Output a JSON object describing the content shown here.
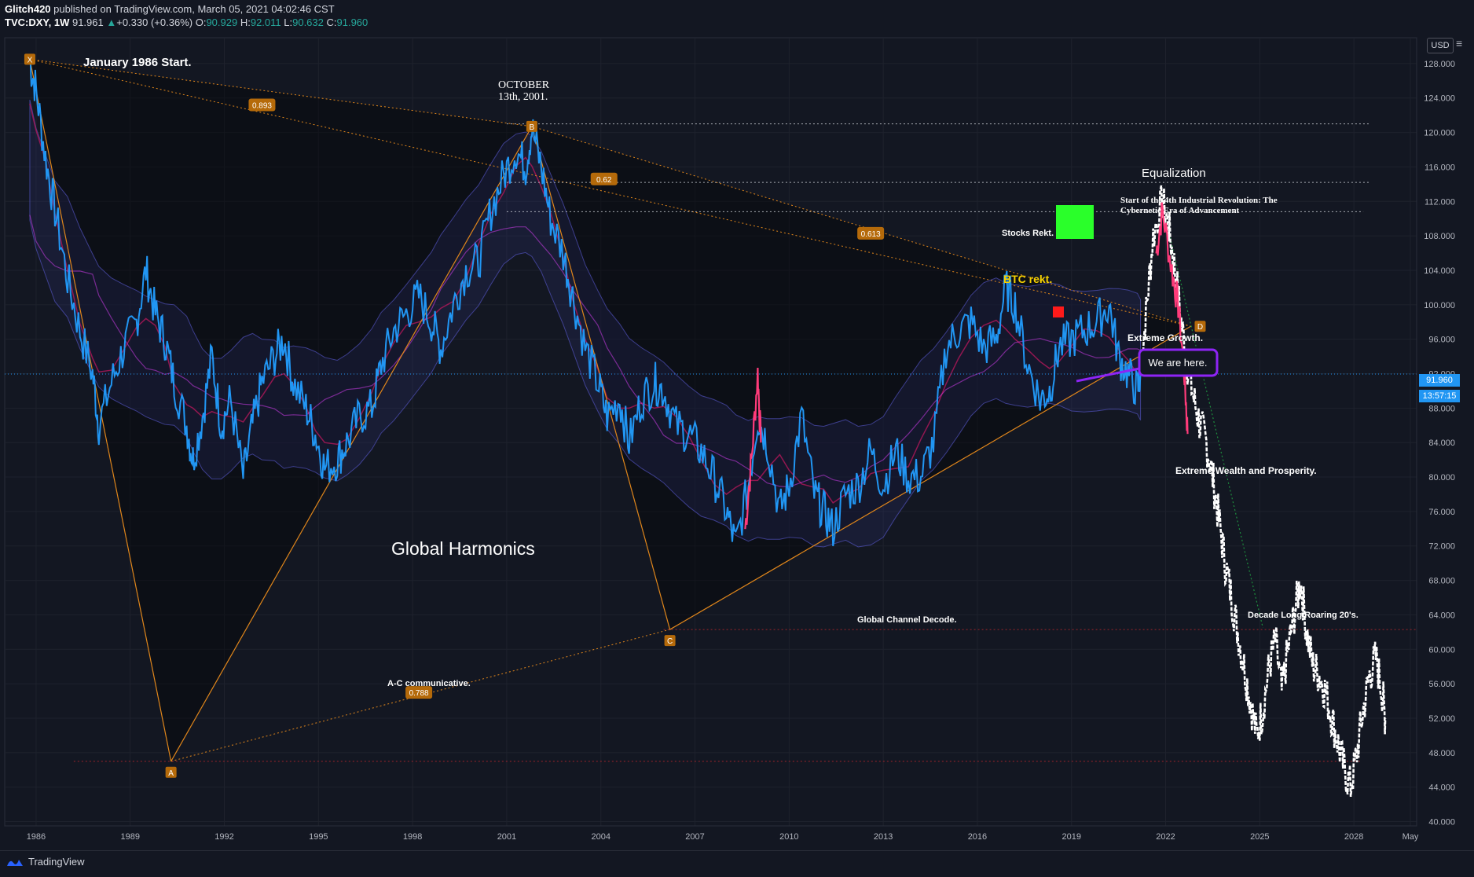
{
  "header": {
    "publisher": "Glitch420",
    "published_text": "published on TradingView.com, March 05, 2021 04:02:46 CST",
    "symbol": "TVC:DXY, 1W",
    "last": "91.961",
    "change_arrow": "▲",
    "change": "+0.330 (+0.36%)",
    "o_label": "O:",
    "o_val": "90.929",
    "h_label": "H:",
    "h_val": "92.011",
    "l_label": "L:",
    "l_val": "90.632",
    "c_label": "C:",
    "c_val": "91.960"
  },
  "footer": {
    "brand": "TradingView"
  },
  "price_axis": {
    "currency": "USD",
    "current_price": "91.960",
    "countdown": "13:57:15"
  },
  "colors": {
    "background": "#131722",
    "price_line": "#2196f3",
    "projection": "#ffffff",
    "pattern": "#e0861b",
    "pink_ma": "#e040fb",
    "red_ma": "#b2185a",
    "band": "#5c5cd6",
    "green_box": "#2aff2a",
    "red_box": "#ff1a1a",
    "callout_border": "#8e24f5"
  },
  "annotations": {
    "start": "January 1986 Start.",
    "october": "OCTOBER",
    "october2": "13th, 2001.",
    "equalization": "Equalization",
    "industrial1": "Start of the 4th Industrial Revolution: The",
    "industrial2": "Cybernetic Era of Advancement",
    "stocks": "Stocks Rekt.",
    "btc": "BTC rekt.",
    "extreme_growth": "Extreme Growth.",
    "we_are_here": "We are here.",
    "extreme_wealth": "Extreme Wealth and Prosperity.",
    "global_harmonics": "Global Harmonics",
    "channel_decode": "Global Channel Decode.",
    "roaring": "Decade Long Roaring 20's.",
    "ac_comm": "A-C communicative."
  },
  "pattern_points": [
    {
      "label": "X",
      "x": 1985.8,
      "y": 128.5
    },
    {
      "label": "A",
      "x": 1990.3,
      "y": 47.0
    },
    {
      "label": "B",
      "x": 2001.8,
      "y": 120.7
    },
    {
      "label": "C",
      "x": 2006.2,
      "y": 62.3
    },
    {
      "label": "D",
      "x": 2022.8,
      "y": 97.5
    }
  ],
  "ratios": [
    {
      "label": "0.893",
      "x": 1993.2,
      "y": 123.2
    },
    {
      "label": "0.62",
      "x": 2004.1,
      "y": 114.6
    },
    {
      "label": "0.613",
      "x": 2012.6,
      "y": 108.3
    },
    {
      "label": "0.788",
      "x": 1998.2,
      "y": 55.0
    }
  ],
  "chart_data": {
    "type": "line",
    "title": "",
    "xlabel": "",
    "ylabel": "",
    "x_ticks": [
      "1986",
      "1989",
      "1992",
      "1995",
      "1998",
      "2001",
      "2004",
      "2007",
      "2010",
      "2013",
      "2016",
      "2019",
      "2022",
      "2025",
      "2028",
      "May"
    ],
    "y_ticks": [
      "128.000",
      "124.000",
      "120.000",
      "116.000",
      "112.000",
      "108.000",
      "104.000",
      "100.000",
      "96.000",
      "92.000",
      "88.000",
      "84.000",
      "80.000",
      "76.000",
      "72.000",
      "68.000",
      "64.000",
      "60.000",
      "56.000",
      "52.000",
      "48.000",
      "44.000",
      "40.000"
    ],
    "ylim": [
      39.5,
      131
    ],
    "xlim": [
      1985.0,
      2030.0
    ],
    "series": [
      {
        "name": "",
        "points": [
          [
            1985.8,
            128.0
          ],
          [
            1986.0,
            125.0
          ],
          [
            1986.3,
            117.0
          ],
          [
            1986.6,
            111.0
          ],
          [
            1987.0,
            103.0
          ],
          [
            1987.4,
            97.0
          ],
          [
            1987.8,
            92.0
          ],
          [
            1988.0,
            86.0
          ],
          [
            1988.4,
            91.0
          ],
          [
            1988.8,
            95.0
          ],
          [
            1989.2,
            98.0
          ],
          [
            1989.5,
            104.0
          ],
          [
            1989.8,
            99.0
          ],
          [
            1990.1,
            96.0
          ],
          [
            1990.4,
            91.0
          ],
          [
            1990.8,
            86.0
          ],
          [
            1991.0,
            82.0
          ],
          [
            1991.3,
            87.0
          ],
          [
            1991.6,
            94.0
          ],
          [
            1991.9,
            86.0
          ],
          [
            1992.2,
            89.0
          ],
          [
            1992.6,
            80.0
          ],
          [
            1992.9,
            86.0
          ],
          [
            1993.2,
            91.0
          ],
          [
            1993.6,
            94.0
          ],
          [
            1993.9,
            96.0
          ],
          [
            1994.2,
            91.0
          ],
          [
            1994.6,
            88.0
          ],
          [
            1994.9,
            85.0
          ],
          [
            1995.2,
            81.0
          ],
          [
            1995.6,
            82.0
          ],
          [
            1995.9,
            84.0
          ],
          [
            1996.3,
            87.0
          ],
          [
            1996.7,
            88.0
          ],
          [
            1997.0,
            93.0
          ],
          [
            1997.4,
            97.0
          ],
          [
            1997.8,
            99.0
          ],
          [
            1998.2,
            101.0
          ],
          [
            1998.6,
            98.0
          ],
          [
            1998.9,
            95.0
          ],
          [
            1999.3,
            100.0
          ],
          [
            1999.7,
            104.0
          ],
          [
            2000.1,
            105.0
          ],
          [
            2000.5,
            111.0
          ],
          [
            2000.9,
            115.0
          ],
          [
            2001.3,
            118.0
          ],
          [
            2001.6,
            116.0
          ],
          [
            2001.8,
            120.5
          ],
          [
            2002.1,
            116.0
          ],
          [
            2002.4,
            110.0
          ],
          [
            2002.8,
            106.0
          ],
          [
            2003.1,
            101.0
          ],
          [
            2003.5,
            95.0
          ],
          [
            2003.9,
            91.0
          ],
          [
            2004.2,
            87.0
          ],
          [
            2004.6,
            89.0
          ],
          [
            2004.9,
            84.0
          ],
          [
            2005.3,
            89.0
          ],
          [
            2005.7,
            91.0
          ],
          [
            2006.0,
            90.0
          ],
          [
            2006.4,
            86.0
          ],
          [
            2006.8,
            85.0
          ],
          [
            2007.2,
            83.0
          ],
          [
            2007.6,
            80.0
          ],
          [
            2008.0,
            76.0
          ],
          [
            2008.3,
            72.0
          ],
          [
            2008.7,
            79.0
          ],
          [
            2009.0,
            87.0
          ],
          [
            2009.3,
            84.0
          ],
          [
            2009.7,
            76.0
          ],
          [
            2010.0,
            79.0
          ],
          [
            2010.4,
            87.0
          ],
          [
            2010.8,
            78.0
          ],
          [
            2011.1,
            76.0
          ],
          [
            2011.4,
            74.0
          ],
          [
            2011.8,
            78.0
          ],
          [
            2012.2,
            79.0
          ],
          [
            2012.6,
            83.0
          ],
          [
            2013.0,
            79.0
          ],
          [
            2013.4,
            83.0
          ],
          [
            2013.8,
            80.0
          ],
          [
            2014.2,
            80.0
          ],
          [
            2014.6,
            84.0
          ],
          [
            2015.0,
            95.0
          ],
          [
            2015.4,
            97.0
          ],
          [
            2015.8,
            98.0
          ],
          [
            2016.2,
            95.0
          ],
          [
            2016.6,
            96.0
          ],
          [
            2016.9,
            102.0
          ],
          [
            2017.2,
            100.0
          ],
          [
            2017.6,
            93.0
          ],
          [
            2018.0,
            89.0
          ],
          [
            2018.3,
            90.0
          ],
          [
            2018.6,
            95.0
          ],
          [
            2019.0,
            96.0
          ],
          [
            2019.4,
            97.0
          ],
          [
            2019.8,
            98.0
          ],
          [
            2020.2,
            100.0
          ],
          [
            2020.5,
            94.0
          ],
          [
            2020.8,
            92.0
          ],
          [
            2021.1,
            90.0
          ],
          [
            2021.2,
            91.96
          ]
        ]
      },
      {
        "name": "",
        "points": [
          [
            2021.2,
            92.0
          ],
          [
            2021.4,
            100.0
          ],
          [
            2021.6,
            108.0
          ],
          [
            2021.9,
            112.0
          ],
          [
            2022.1,
            109.0
          ],
          [
            2022.3,
            104.0
          ],
          [
            2022.5,
            98.0
          ],
          [
            2022.7,
            93.0
          ],
          [
            2022.9,
            89.0
          ],
          [
            2023.1,
            86.0
          ],
          [
            2023.3,
            84.0
          ],
          [
            2023.5,
            80.0
          ],
          [
            2023.7,
            75.0
          ],
          [
            2023.9,
            70.0
          ],
          [
            2024.1,
            66.0
          ],
          [
            2024.3,
            62.0
          ],
          [
            2024.5,
            58.0
          ],
          [
            2024.7,
            54.0
          ],
          [
            2024.9,
            50.0
          ],
          [
            2025.1,
            53.0
          ],
          [
            2025.3,
            58.0
          ],
          [
            2025.5,
            61.0
          ],
          [
            2025.7,
            55.0
          ],
          [
            2025.9,
            60.0
          ],
          [
            2026.1,
            64.0
          ],
          [
            2026.3,
            68.0
          ],
          [
            2026.5,
            62.0
          ],
          [
            2026.7,
            58.0
          ],
          [
            2026.9,
            57.0
          ],
          [
            2027.1,
            55.0
          ],
          [
            2027.3,
            52.0
          ],
          [
            2027.5,
            49.0
          ],
          [
            2027.7,
            46.0
          ],
          [
            2027.9,
            44.0
          ],
          [
            2028.1,
            48.0
          ],
          [
            2028.3,
            53.0
          ],
          [
            2028.5,
            57.0
          ],
          [
            2028.7,
            59.0
          ],
          [
            2028.9,
            55.0
          ],
          [
            2029.0,
            52.0
          ]
        ]
      }
    ]
  }
}
